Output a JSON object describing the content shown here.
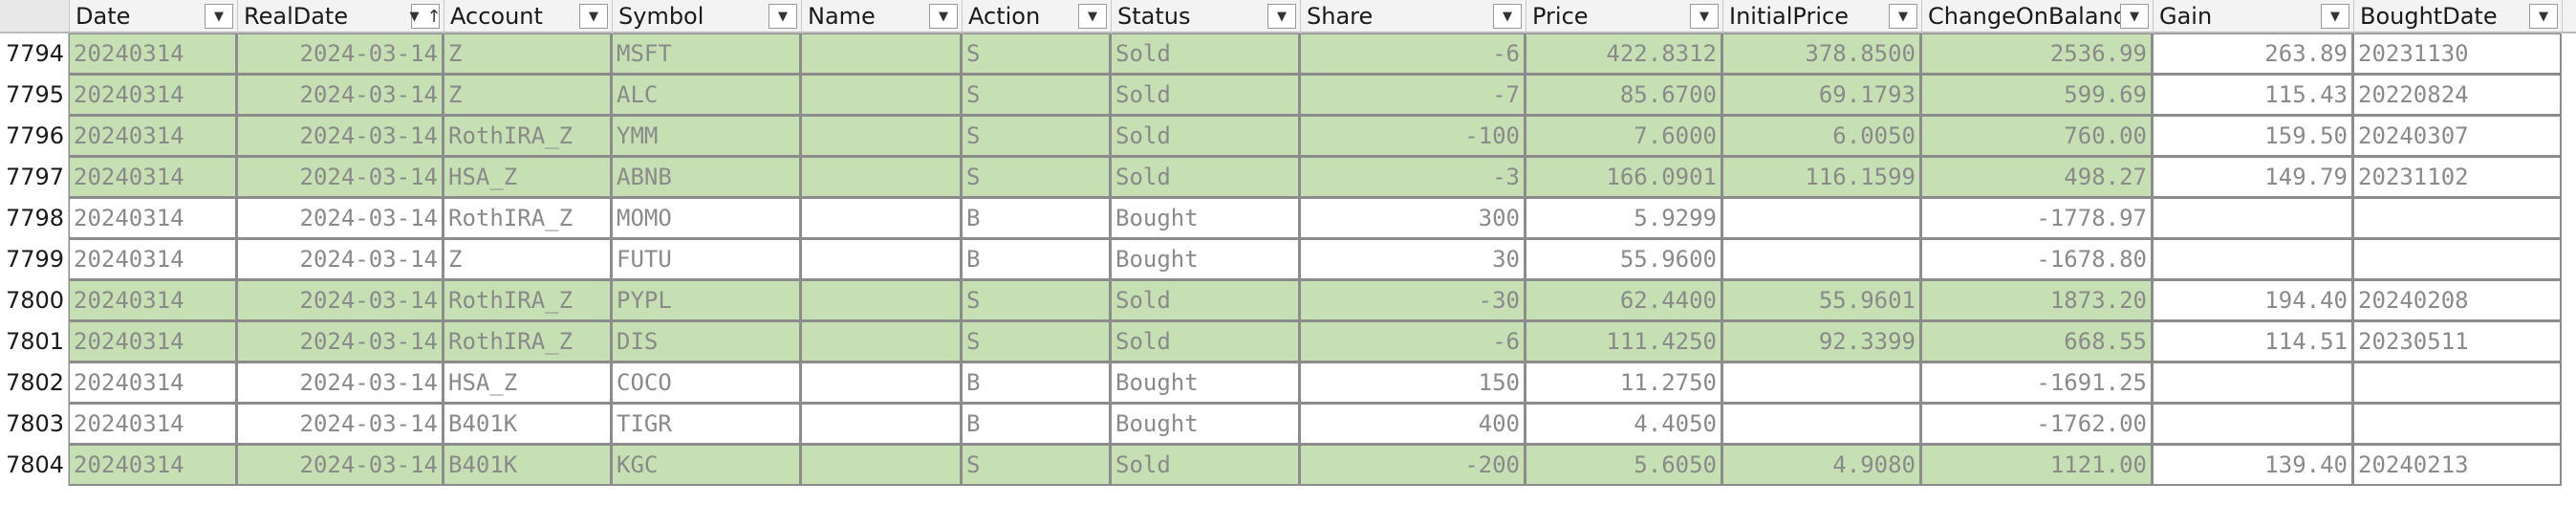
{
  "columns": [
    {
      "label": "Date",
      "sort": ""
    },
    {
      "label": "RealDate",
      "sort": "↓↑"
    },
    {
      "label": "Account",
      "sort": ""
    },
    {
      "label": "Symbol",
      "sort": ""
    },
    {
      "label": "Name",
      "sort": ""
    },
    {
      "label": "Action",
      "sort": ""
    },
    {
      "label": "Status",
      "sort": ""
    },
    {
      "label": "Share",
      "sort": ""
    },
    {
      "label": "Price",
      "sort": ""
    },
    {
      "label": "InitialPrice",
      "sort": ""
    },
    {
      "label": "ChangeOnBalance",
      "sort": ""
    },
    {
      "label": "Gain",
      "sort": ""
    },
    {
      "label": "BoughtDate",
      "sort": ""
    }
  ],
  "filter_icon": "▼",
  "colors": {
    "sold_fill": "#c6e0b4",
    "header_bg": "#f3f3f3"
  },
  "rows": [
    {
      "num": "7794",
      "status_type": "sold",
      "cells": [
        "20240314",
        "2024-03-14",
        "Z",
        "MSFT",
        "",
        "S",
        "Sold",
        "-6",
        "422.8312",
        "378.8500",
        "2536.99",
        "263.89",
        "20231130"
      ]
    },
    {
      "num": "7795",
      "status_type": "sold",
      "cells": [
        "20240314",
        "2024-03-14",
        "Z",
        "ALC",
        "",
        "S",
        "Sold",
        "-7",
        "85.6700",
        "69.1793",
        "599.69",
        "115.43",
        "20220824"
      ]
    },
    {
      "num": "7796",
      "status_type": "sold",
      "cells": [
        "20240314",
        "2024-03-14",
        "RothIRA_Z",
        "YMM",
        "",
        "S",
        "Sold",
        "-100",
        "7.6000",
        "6.0050",
        "760.00",
        "159.50",
        "20240307"
      ]
    },
    {
      "num": "7797",
      "status_type": "sold",
      "cells": [
        "20240314",
        "2024-03-14",
        "HSA_Z",
        "ABNB",
        "",
        "S",
        "Sold",
        "-3",
        "166.0901",
        "116.1599",
        "498.27",
        "149.79",
        "20231102"
      ]
    },
    {
      "num": "7798",
      "status_type": "bought",
      "cells": [
        "20240314",
        "2024-03-14",
        "RothIRA_Z",
        "MOMO",
        "",
        "B",
        "Bought",
        "300",
        "5.9299",
        "",
        "-1778.97",
        "",
        ""
      ]
    },
    {
      "num": "7799",
      "status_type": "bought",
      "cells": [
        "20240314",
        "2024-03-14",
        "Z",
        "FUTU",
        "",
        "B",
        "Bought",
        "30",
        "55.9600",
        "",
        "-1678.80",
        "",
        ""
      ]
    },
    {
      "num": "7800",
      "status_type": "sold",
      "cells": [
        "20240314",
        "2024-03-14",
        "RothIRA_Z",
        "PYPL",
        "",
        "S",
        "Sold",
        "-30",
        "62.4400",
        "55.9601",
        "1873.20",
        "194.40",
        "20240208"
      ]
    },
    {
      "num": "7801",
      "status_type": "sold",
      "cells": [
        "20240314",
        "2024-03-14",
        "RothIRA_Z",
        "DIS",
        "",
        "S",
        "Sold",
        "-6",
        "111.4250",
        "92.3399",
        "668.55",
        "114.51",
        "20230511"
      ]
    },
    {
      "num": "7802",
      "status_type": "bought",
      "cells": [
        "20240314",
        "2024-03-14",
        "HSA_Z",
        "COCO",
        "",
        "B",
        "Bought",
        "150",
        "11.2750",
        "",
        "-1691.25",
        "",
        ""
      ]
    },
    {
      "num": "7803",
      "status_type": "bought",
      "cells": [
        "20240314",
        "2024-03-14",
        "B401K",
        "TIGR",
        "",
        "B",
        "Bought",
        "400",
        "4.4050",
        "",
        "-1762.00",
        "",
        ""
      ]
    },
    {
      "num": "7804",
      "status_type": "sold",
      "cells": [
        "20240314",
        "2024-03-14",
        "B401K",
        "KGC",
        "",
        "S",
        "Sold",
        "-200",
        "5.6050",
        "4.9080",
        "1121.00",
        "139.40",
        "20240213"
      ]
    }
  ]
}
